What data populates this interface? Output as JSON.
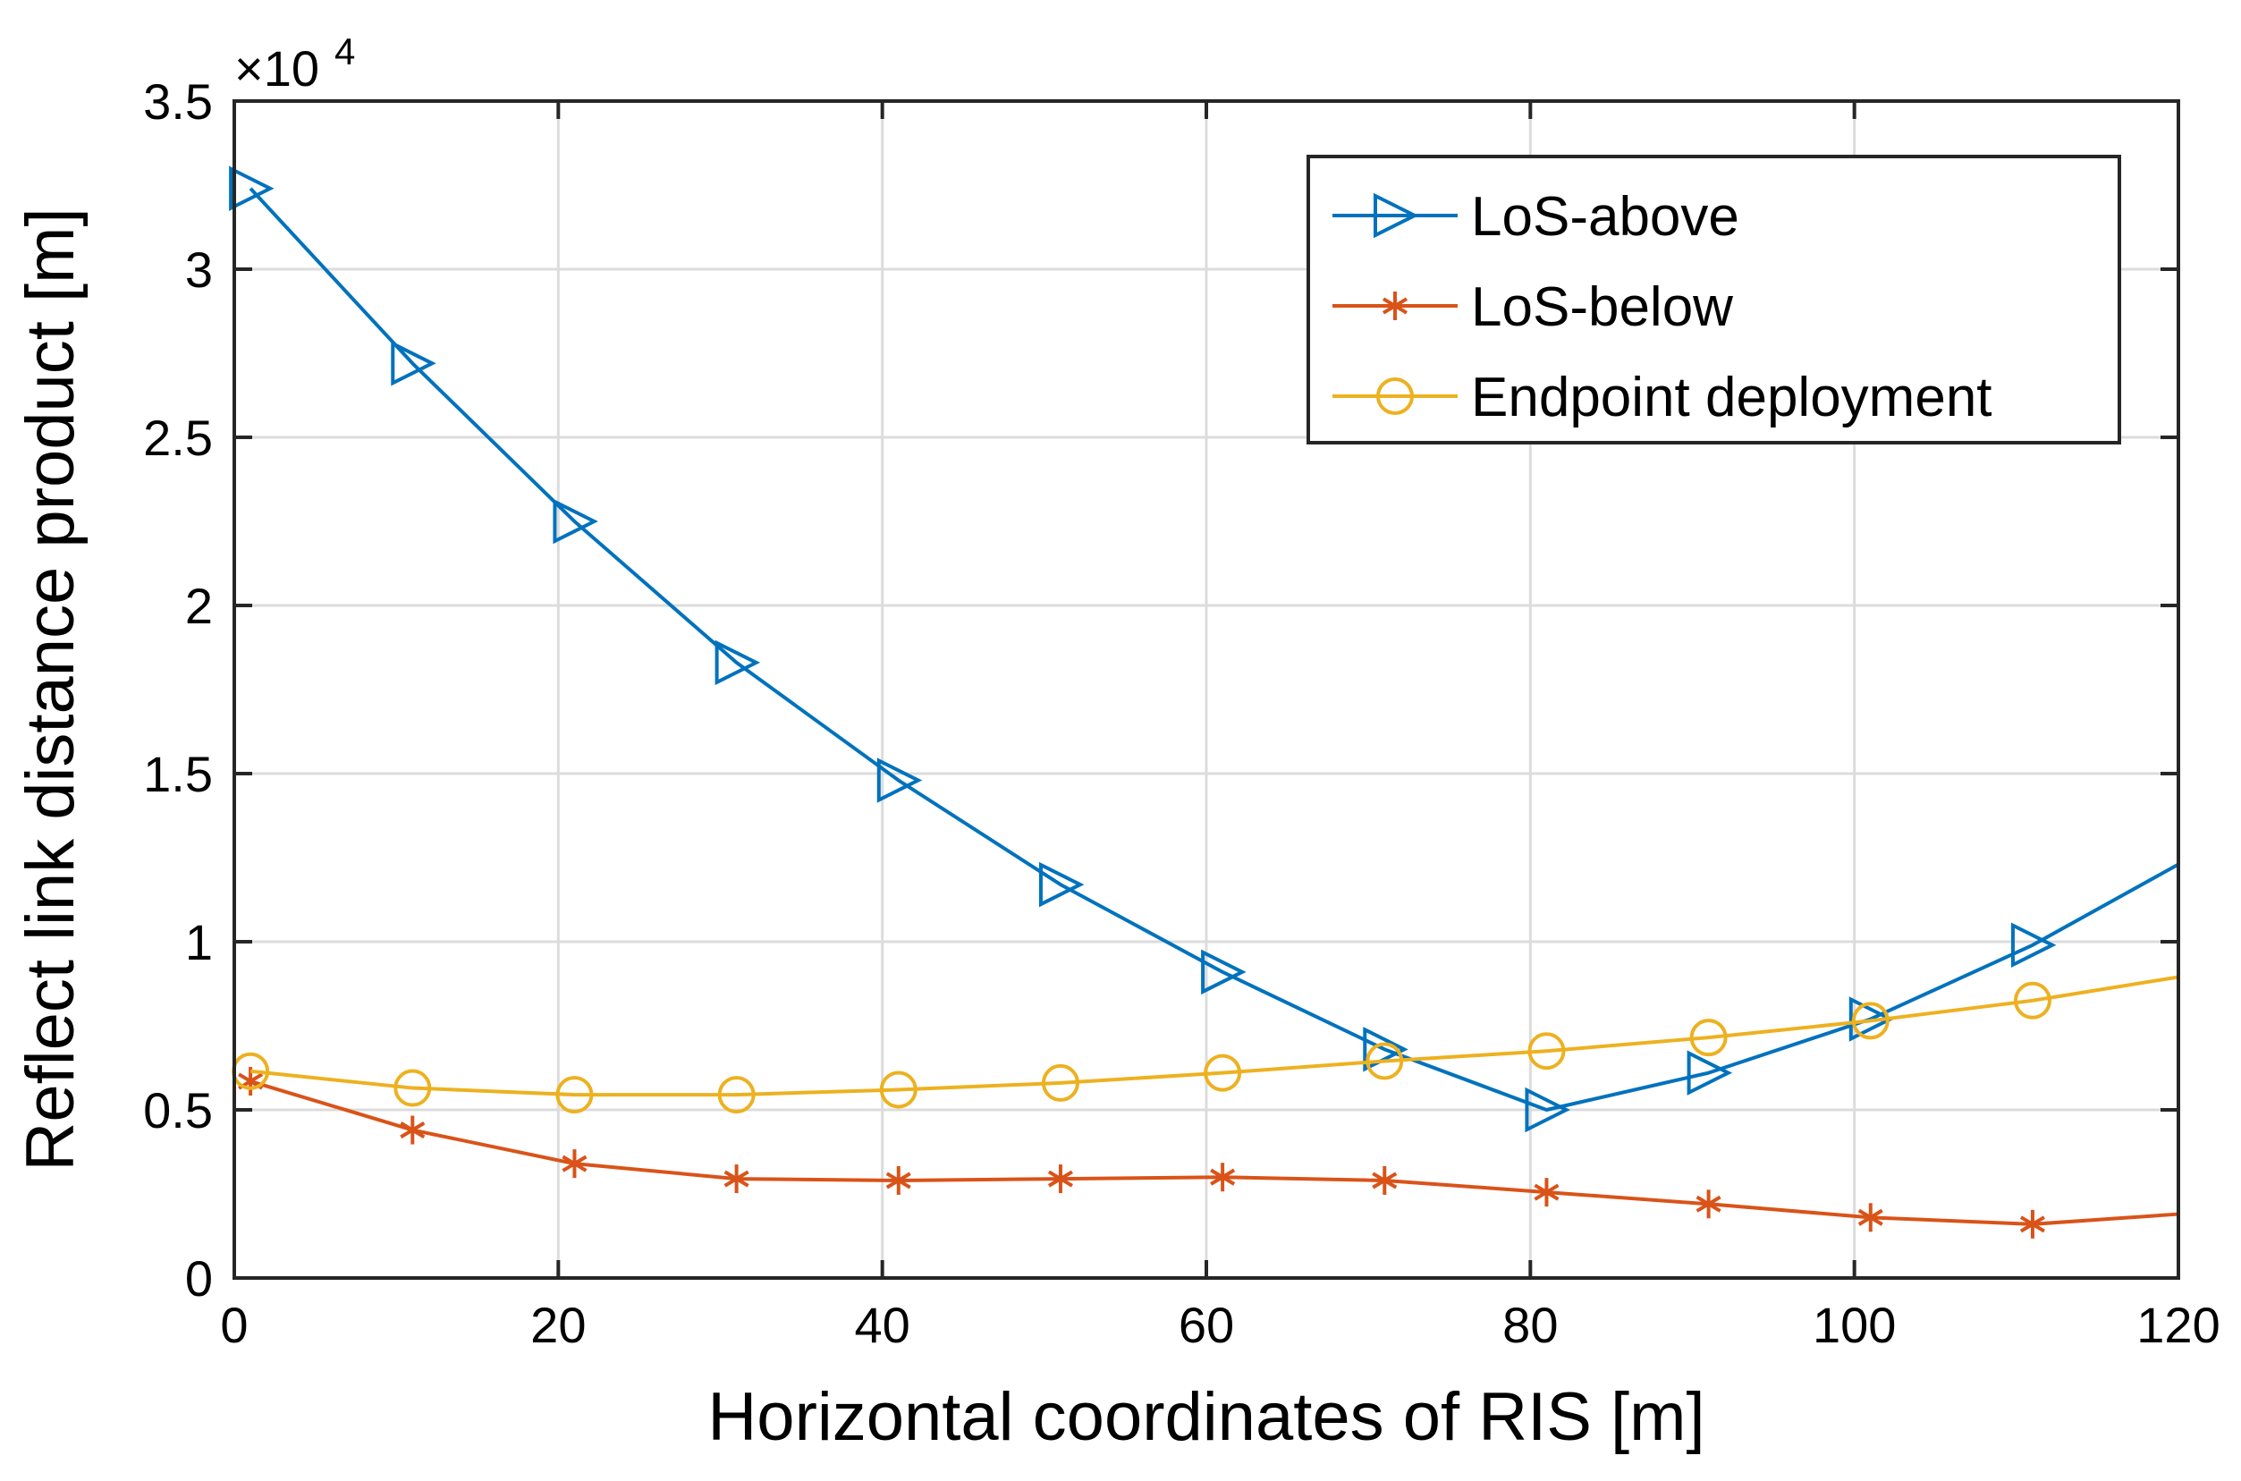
{
  "chart_data": {
    "type": "line",
    "xlabel": "Horizontal coordinates of RIS [m]",
    "ylabel": "Reflect link distance product [m]",
    "y_exponent_base": "×10",
    "y_exponent_power": "4",
    "xlim": [
      0,
      120
    ],
    "ylim": [
      0,
      35000
    ],
    "xticks": [
      0,
      20,
      40,
      60,
      80,
      100,
      120
    ],
    "yticks": [
      0,
      5000,
      10000,
      15000,
      20000,
      25000,
      30000,
      35000
    ],
    "xtick_labels": [
      "0",
      "20",
      "40",
      "60",
      "80",
      "100",
      "120"
    ],
    "ytick_labels": [
      "0",
      "0.5",
      "1",
      "1.5",
      "2",
      "2.5",
      "3",
      "3.5"
    ],
    "grid": true,
    "legend_position": "top-right",
    "series": [
      {
        "name": "LoS-above",
        "color": "#0072BD",
        "marker": "triangle-right",
        "x": [
          1,
          11,
          21,
          31,
          41,
          51,
          61,
          71,
          81,
          91,
          101,
          111,
          120
        ],
        "y": [
          32400,
          27200,
          22500,
          18300,
          14800,
          11700,
          9100,
          6800,
          5000,
          6100,
          7700,
          9900,
          12300
        ],
        "marker_x": [
          1,
          11,
          21,
          31,
          41,
          51,
          61,
          71,
          81,
          91,
          101,
          111
        ]
      },
      {
        "name": "LoS-below",
        "color": "#D95319",
        "marker": "asterisk",
        "x": [
          1,
          11,
          21,
          31,
          41,
          51,
          61,
          71,
          81,
          91,
          101,
          111,
          120
        ],
        "y": [
          5850,
          4400,
          3400,
          2950,
          2900,
          2950,
          3000,
          2900,
          2550,
          2200,
          1800,
          1600,
          1900
        ],
        "marker_x": [
          1,
          11,
          21,
          31,
          41,
          51,
          61,
          71,
          81,
          91,
          101,
          111
        ]
      },
      {
        "name": "Endpoint deployment",
        "color": "#EDB120",
        "marker": "circle",
        "x": [
          1,
          11,
          21,
          31,
          41,
          51,
          61,
          71,
          81,
          91,
          101,
          111,
          120
        ],
        "y": [
          6150,
          5650,
          5450,
          5450,
          5600,
          5800,
          6100,
          6450,
          6750,
          7150,
          7650,
          8250,
          8950
        ],
        "marker_x": [
          1,
          11,
          21,
          31,
          41,
          51,
          61,
          71,
          81,
          91,
          101,
          111
        ]
      }
    ]
  }
}
